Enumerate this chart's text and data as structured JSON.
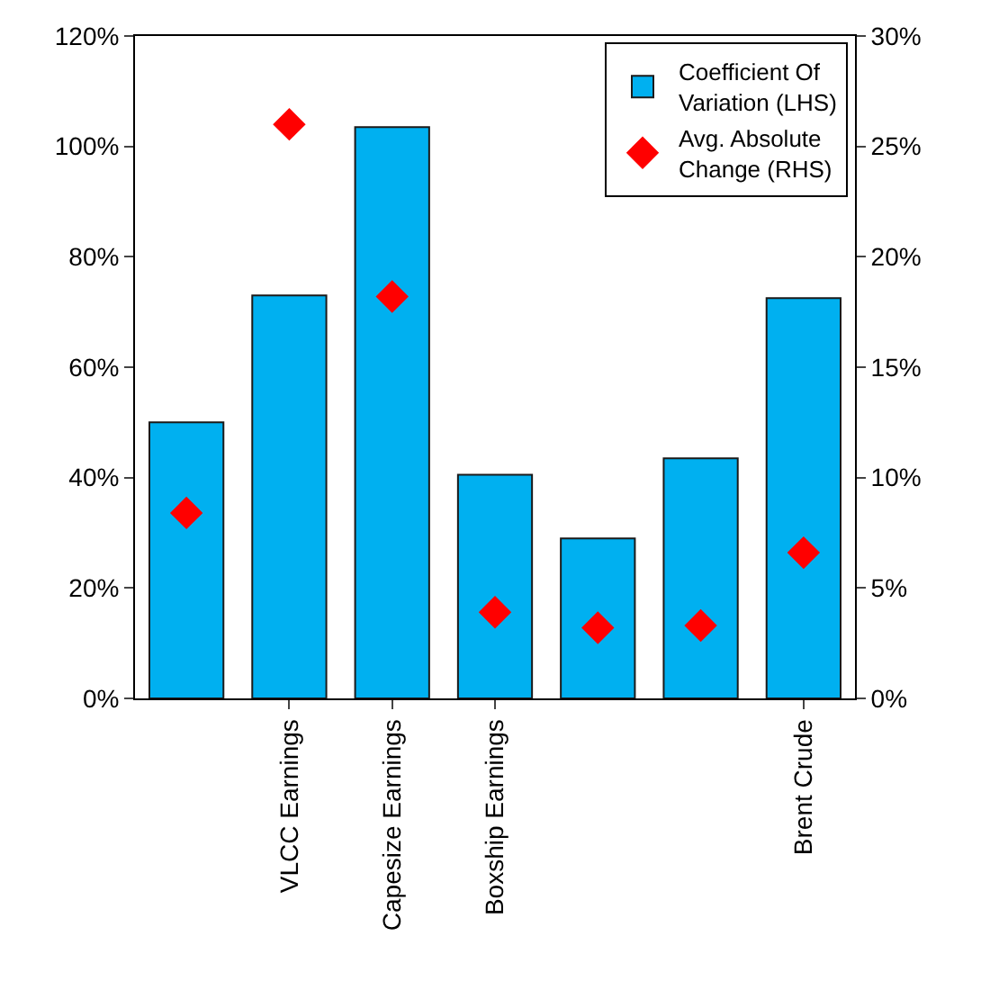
{
  "chart_data": {
    "type": "bar",
    "categories": [
      null,
      "VLCC Earnings",
      "Capesize Earnings",
      "Boxship Earnings",
      null,
      null,
      "Brent Crude"
    ],
    "series": [
      {
        "name": "Coefficient Of Variation (LHS)",
        "color": "#00b0f0",
        "values": [
          50,
          73,
          103.5,
          40.5,
          29,
          43.5,
          72.5
        ]
      },
      {
        "name": "Avg. Absolute Change (RHS)",
        "type": "scatter",
        "axis": "y2",
        "color": "#ff0000",
        "marker": "diamond",
        "values": [
          8.4,
          26,
          18.2,
          3.9,
          3.2,
          3.3,
          6.6
        ]
      }
    ],
    "ylim": [
      0,
      120
    ],
    "yticks": [
      {
        "value": 0,
        "label": "0%"
      },
      {
        "value": 20,
        "label": "20%"
      },
      {
        "value": 40,
        "label": "40%"
      },
      {
        "value": 60,
        "label": "60%"
      },
      {
        "value": 80,
        "label": "80%"
      },
      {
        "value": 100,
        "label": "100%"
      },
      {
        "value": 120,
        "label": "120%"
      }
    ],
    "y2lim": [
      0,
      30
    ],
    "y2ticks": [
      {
        "value": 0,
        "label": "0%"
      },
      {
        "value": 5,
        "label": "5%"
      },
      {
        "value": 10,
        "label": "10%"
      },
      {
        "value": 15,
        "label": "15%"
      },
      {
        "value": 20,
        "label": "20%"
      },
      {
        "value": 25,
        "label": "25%"
      },
      {
        "value": 30,
        "label": "30%"
      }
    ],
    "legend": "top right"
  }
}
